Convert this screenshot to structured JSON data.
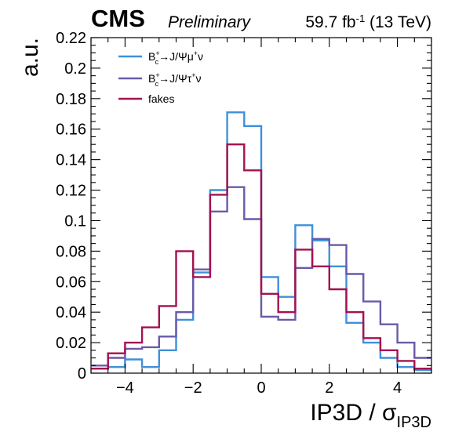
{
  "header": {
    "experiment": "CMS",
    "status": "Preliminary",
    "lumi": "59.7 fb",
    "lumi_exp": "-1",
    "energy": " (13 TeV)"
  },
  "chart_data": {
    "type": "histogram",
    "xlabel_main": "IP3D / σ",
    "xlabel_sub": "IP3D",
    "ylabel": "a.u.",
    "xlim": [
      -5,
      5
    ],
    "ylim": [
      0,
      0.22
    ],
    "bin_edges": [
      -5,
      -4.5,
      -4,
      -3.5,
      -3,
      -2.5,
      -2,
      -1.5,
      -1,
      -0.5,
      0,
      0.5,
      1,
      1.5,
      2,
      2.5,
      3,
      3.5,
      4,
      4.5,
      5
    ],
    "x_ticks": [
      {
        "value": -4,
        "label": "−4"
      },
      {
        "value": -2,
        "label": "−2"
      },
      {
        "value": 0,
        "label": "0"
      },
      {
        "value": 2,
        "label": "2"
      },
      {
        "value": 4,
        "label": "4"
      }
    ],
    "y_ticks": [
      {
        "value": 0,
        "label": "0"
      },
      {
        "value": 0.02,
        "label": "0.02"
      },
      {
        "value": 0.04,
        "label": "0.04"
      },
      {
        "value": 0.06,
        "label": "0.06"
      },
      {
        "value": 0.08,
        "label": "0.08"
      },
      {
        "value": 0.1,
        "label": "0.1"
      },
      {
        "value": 0.12,
        "label": "0.12"
      },
      {
        "value": 0.14,
        "label": "0.14"
      },
      {
        "value": 0.16,
        "label": "0.16"
      },
      {
        "value": 0.18,
        "label": "0.18"
      },
      {
        "value": 0.2,
        "label": "0.2"
      },
      {
        "value": 0.22,
        "label": "0.22"
      }
    ],
    "series": [
      {
        "legend_main": "B",
        "legend_sup": "+",
        "legend_sub": "c",
        "legend_rest": "→J/Ψμ",
        "legend_sup2": "+",
        "legend_end": "ν",
        "color": "#3f90da",
        "values": [
          0.003,
          0.004,
          0.009,
          0.004,
          0.015,
          0.035,
          0.066,
          0.12,
          0.171,
          0.162,
          0.063,
          0.05,
          0.097,
          0.087,
          0.07,
          0.033,
          0.02,
          0.01,
          0.004,
          0.002
        ]
      },
      {
        "legend_main": "B",
        "legend_sup": "+",
        "legend_sub": "c",
        "legend_rest": "→J/Ψτ",
        "legend_sup2": "+",
        "legend_end": "ν",
        "color": "#6a5aa8",
        "values": [
          0.005,
          0.01,
          0.016,
          0.017,
          0.024,
          0.04,
          0.068,
          0.106,
          0.122,
          0.101,
          0.037,
          0.035,
          0.069,
          0.088,
          0.084,
          0.065,
          0.047,
          0.032,
          0.02,
          0.01
        ]
      },
      {
        "legend_main": "fakes",
        "legend_sup": "",
        "legend_sub": "",
        "legend_rest": "",
        "legend_sup2": "",
        "legend_end": "",
        "color": "#a3124f",
        "values": [
          0.003,
          0.013,
          0.02,
          0.03,
          0.044,
          0.08,
          0.063,
          0.117,
          0.15,
          0.133,
          0.052,
          0.04,
          0.081,
          0.07,
          0.055,
          0.04,
          0.023,
          0.015,
          0.008,
          0.003
        ]
      }
    ],
    "legend_position": "top-left",
    "grid": false
  }
}
